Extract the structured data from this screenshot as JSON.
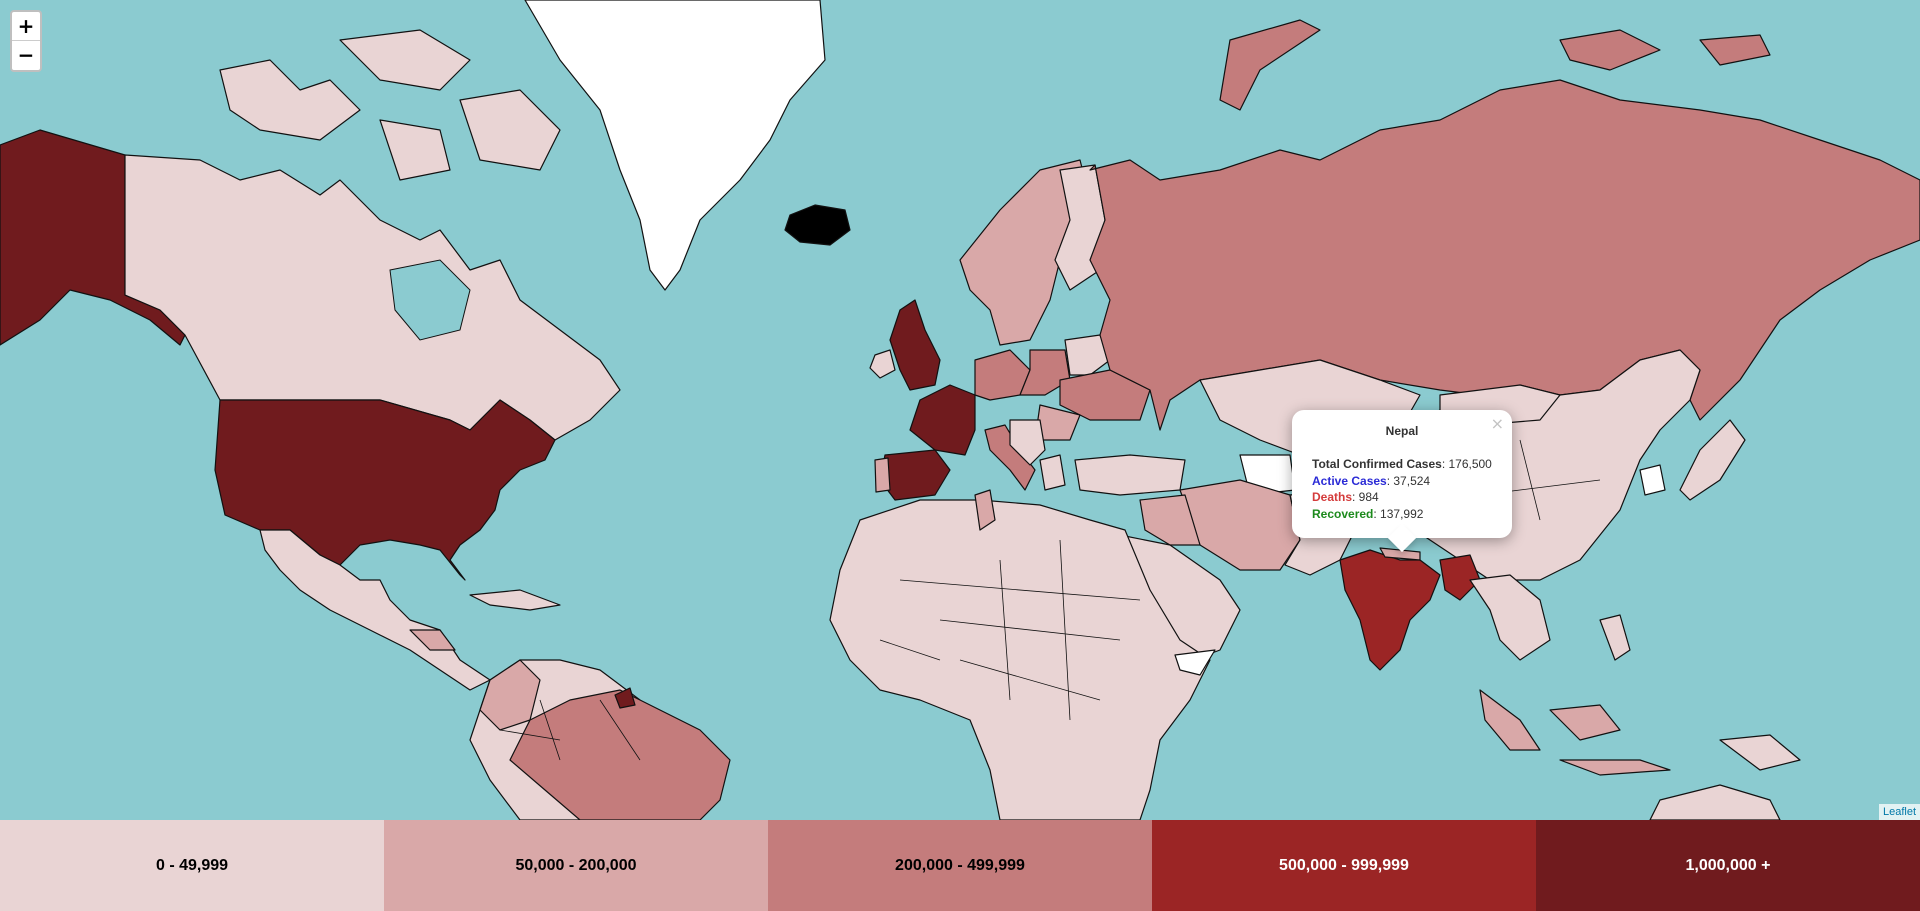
{
  "map": {
    "zoom": {
      "in_label": "+",
      "out_label": "−"
    },
    "attribution": "Leaflet",
    "colors": {
      "water": "#8bcbd0",
      "bin_0": "#e9d4d4",
      "bin_1": "#d9a8a8",
      "bin_2": "#c47c7c",
      "bin_3": "#9b2525",
      "bin_4": "#701b1e",
      "no_data": "#ffffff"
    }
  },
  "popup": {
    "title": "Nepal",
    "close_symbol": "×",
    "rows": [
      {
        "label": "Total Confirmed Cases",
        "value": ": 176,500",
        "color": "#333333"
      },
      {
        "label": "Active Cases",
        "value": ": 37,524",
        "color": "#2b2bd6"
      },
      {
        "label": "Deaths",
        "value": ": 984",
        "color": "#d43b3b"
      },
      {
        "label": "Recovered",
        "value": ": 137,992",
        "color": "#1d8a1d"
      }
    ]
  },
  "legend": [
    {
      "label": "0 - 49,999",
      "bg": "#e9d4d4",
      "fg": "#000000"
    },
    {
      "label": "50,000 - 200,000",
      "bg": "#d9a8a8",
      "fg": "#000000"
    },
    {
      "label": "200,000 - 499,999",
      "bg": "#c47c7c",
      "fg": "#000000"
    },
    {
      "label": "500,000 - 999,999",
      "bg": "#9b2525",
      "fg": "#ffffff"
    },
    {
      "label": "1,000,000 +",
      "bg": "#701b1e",
      "fg": "#ffffff"
    }
  ]
}
